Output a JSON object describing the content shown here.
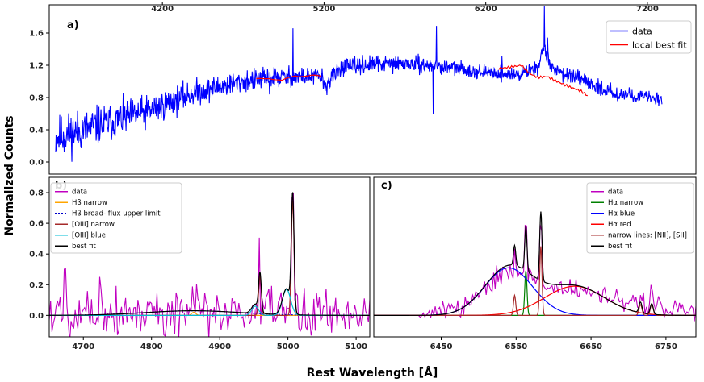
{
  "figure": {
    "ylabel": "Normalized Counts",
    "xlabel": "Rest Wavelength [Å]"
  },
  "chart_data": [
    {
      "id": "a",
      "type": "line",
      "panel_label": "a)",
      "xlim": [
        3500,
        7500
      ],
      "ylim": [
        -0.15,
        1.95
      ],
      "xticks": [
        4200,
        5200,
        6200,
        7200
      ],
      "xtick_position": "top",
      "yticks": [
        0.0,
        0.4,
        0.8,
        1.2,
        1.6
      ],
      "ytick_labels": [
        "0.0",
        "0.4",
        "0.8",
        "1.2",
        "1.6"
      ],
      "legend": {
        "placement": "top-right",
        "entries": [
          {
            "name": "data",
            "color": "#0000ff"
          },
          {
            "name": "local best fit",
            "color": "#ff0000"
          }
        ]
      },
      "series": [
        {
          "name": "data",
          "color": "#0000ff",
          "kind": "noisy",
          "x_range": [
            3540,
            7290
          ],
          "step": 2.5,
          "seed": 11,
          "anchors": [
            [
              3540,
              0.3
            ],
            [
              3800,
              0.45
            ],
            [
              4100,
              0.62
            ],
            [
              4400,
              0.86
            ],
            [
              4700,
              1.0
            ],
            [
              4900,
              1.05
            ],
            [
              5190,
              1.06
            ],
            [
              5200,
              0.92
            ],
            [
              5300,
              1.17
            ],
            [
              5500,
              1.21
            ],
            [
              5700,
              1.22
            ],
            [
              6000,
              1.17
            ],
            [
              6200,
              1.11
            ],
            [
              6400,
              1.08
            ],
            [
              6520,
              1.18
            ],
            [
              6560,
              1.42
            ],
            [
              6600,
              1.18
            ],
            [
              6800,
              1.0
            ],
            [
              7000,
              0.85
            ],
            [
              7290,
              0.78
            ]
          ],
          "noise_anchors": [
            [
              3540,
              0.17
            ],
            [
              4400,
              0.1
            ],
            [
              5200,
              0.07
            ],
            [
              6200,
              0.05
            ],
            [
              6600,
              0.06
            ],
            [
              7290,
              0.05
            ]
          ],
          "spikes": [
            [
              4862,
              -0.12
            ],
            [
              5007,
              0.6
            ],
            [
              5875,
              -0.55
            ],
            [
              5895,
              0.55
            ],
            [
              6300,
              0.16
            ],
            [
              6563,
              0.5
            ],
            [
              6583,
              0.3
            ],
            [
              6731,
              0.12
            ]
          ]
        },
        {
          "name": "local best fit",
          "color": "#ff0000",
          "kind": "smooth",
          "x_range": [
            4780,
            5180
          ],
          "step": 20,
          "points": [
            [
              4780,
              1.02
            ],
            [
              4860,
              1.05
            ],
            [
              4940,
              1.0
            ],
            [
              5020,
              1.08
            ],
            [
              5100,
              1.06
            ],
            [
              5180,
              1.07
            ]
          ]
        },
        {
          "name": "local best fit",
          "color": "#ff0000",
          "kind": "smooth",
          "x_range": [
            6280,
            6830
          ],
          "step": 10,
          "points": [
            [
              6280,
              1.16
            ],
            [
              6360,
              1.18
            ],
            [
              6420,
              1.2
            ],
            [
              6470,
              1.1
            ],
            [
              6520,
              1.05
            ],
            [
              6580,
              1.06
            ],
            [
              6640,
              1.0
            ],
            [
              6720,
              0.93
            ],
            [
              6790,
              0.88
            ],
            [
              6830,
              0.82
            ]
          ]
        }
      ]
    },
    {
      "id": "b",
      "type": "line",
      "panel_label": "b)",
      "xlim": [
        4650,
        5120
      ],
      "ylim": [
        -0.14,
        0.9
      ],
      "xticks": [
        4700,
        4800,
        4900,
        5000,
        5100
      ],
      "yticks": [
        0.0,
        0.2,
        0.4,
        0.6,
        0.8
      ],
      "ytick_labels": [
        "0.0",
        "0.2",
        "0.4",
        "0.6",
        "0.8"
      ],
      "legend": {
        "placement": "top-left",
        "entries": [
          {
            "name": "data",
            "color": "#c000c0",
            "dash": ""
          },
          {
            "name": "Hβ narrow",
            "color": "#ffa500",
            "dash": ""
          },
          {
            "name": "Hβ broad- flux upper limit",
            "color": "#0000cc",
            "dash": "2,2"
          },
          {
            "name": "[OIII] narrow",
            "color": "#a52a2a",
            "dash": ""
          },
          {
            "name": "[OIII] blue",
            "color": "#00bcd4",
            "dash": ""
          },
          {
            "name": "best fit",
            "color": "#000000",
            "dash": ""
          }
        ]
      },
      "series": [
        {
          "name": "data",
          "color": "#c000c0",
          "kind": "noisy",
          "x_range": [
            4650,
            5120
          ],
          "step": 2,
          "seed": 5,
          "anchors": [
            [
              4650,
              0.02
            ],
            [
              5120,
              0.02
            ]
          ],
          "noise_anchors": [
            [
              4650,
              0.11
            ],
            [
              5120,
              0.1
            ]
          ],
          "spikes": [
            [
              4673,
              0.26
            ],
            [
              4725,
              0.28
            ],
            [
              4860,
              0.06
            ],
            [
              4958,
              0.3
            ],
            [
              4990,
              0.14
            ],
            [
              5007,
              0.74
            ]
          ]
        },
        {
          "name": "Hβ narrow",
          "color": "#ffa500",
          "kind": "gauss",
          "components": [
            {
              "amp": 0.02,
              "mu": 4862,
              "sigma": 3
            }
          ],
          "baseline": 0.0
        },
        {
          "name": "Hβ broad- flux upper limit",
          "color": "#0000cc",
          "kind": "gauss",
          "dash": "2,2",
          "components": [
            {
              "amp": 0.03,
              "mu": 4861,
              "sigma": 70
            }
          ],
          "baseline": 0.0
        },
        {
          "name": "[OIII] narrow",
          "color": "#a52a2a",
          "kind": "gauss",
          "components": [
            {
              "amp": 0.25,
              "mu": 4959,
              "sigma": 2
            },
            {
              "amp": 0.75,
              "mu": 5007,
              "sigma": 2
            }
          ],
          "baseline": 0.0
        },
        {
          "name": "[OIII] blue",
          "color": "#00bcd4",
          "kind": "gauss",
          "components": [
            {
              "amp": 0.06,
              "mu": 4952,
              "sigma": 5
            },
            {
              "amp": 0.17,
              "mu": 4998,
              "sigma": 6
            }
          ],
          "baseline": 0.0
        },
        {
          "name": "best fit",
          "color": "#000000",
          "kind": "gauss",
          "components": [
            {
              "amp": 0.03,
              "mu": 4861,
              "sigma": 70
            },
            {
              "amp": 0.25,
              "mu": 4959,
              "sigma": 2
            },
            {
              "amp": 0.75,
              "mu": 5007,
              "sigma": 2
            },
            {
              "amp": 0.06,
              "mu": 4952,
              "sigma": 5
            },
            {
              "amp": 0.17,
              "mu": 4998,
              "sigma": 6
            }
          ],
          "baseline": 0.0
        }
      ]
    },
    {
      "id": "c",
      "type": "line",
      "panel_label": "c)",
      "xlim": [
        6360,
        6790
      ],
      "ylim": [
        -0.14,
        0.9
      ],
      "xticks": [
        6450,
        6550,
        6650,
        6750
      ],
      "yticks": [],
      "legend": {
        "placement": "top-right",
        "entries": [
          {
            "name": "data",
            "color": "#c000c0"
          },
          {
            "name": "Hα narrow",
            "color": "#008000"
          },
          {
            "name": "Hα blue",
            "color": "#0000ff"
          },
          {
            "name": "Hα red",
            "color": "#ff0000"
          },
          {
            "name": "narrow lines: [NII], [SII]",
            "color": "#a52a2a"
          },
          {
            "name": "best fit",
            "color": "#000000"
          }
        ]
      },
      "series": [
        {
          "name": "data",
          "color": "#c000c0",
          "kind": "noisy",
          "x_range": [
            6420,
            6790
          ],
          "step": 2,
          "seed": 9,
          "anchors": [
            [
              6420,
              0.0
            ],
            [
              6440,
              0.02
            ],
            [
              6480,
              0.06
            ],
            [
              6510,
              0.2
            ],
            [
              6540,
              0.31
            ],
            [
              6560,
              0.28
            ],
            [
              6590,
              0.18
            ],
            [
              6620,
              0.18
            ],
            [
              6650,
              0.16
            ],
            [
              6680,
              0.1
            ],
            [
              6710,
              0.07
            ],
            [
              6730,
              0.07
            ],
            [
              6760,
              0.04
            ],
            [
              6790,
              0.03
            ]
          ],
          "noise_anchors": [
            [
              6420,
              0.01
            ],
            [
              6470,
              0.05
            ],
            [
              6600,
              0.04
            ],
            [
              6790,
              0.05
            ]
          ],
          "spikes": [
            [
              6548,
              0.12
            ],
            [
              6563,
              0.3
            ],
            [
              6583,
              0.38
            ],
            [
              6716,
              0.08
            ],
            [
              6731,
              0.08
            ]
          ]
        },
        {
          "name": "Hα narrow",
          "color": "#008000",
          "kind": "gauss",
          "components": [
            {
              "amp": 0.29,
              "mu": 6563,
              "sigma": 1.5
            }
          ],
          "baseline": 0.0
        },
        {
          "name": "Hα blue",
          "color": "#0000ff",
          "kind": "gauss",
          "components": [
            {
              "amp": 0.31,
              "mu": 6540,
              "sigma": 32
            }
          ],
          "baseline": 0.0
        },
        {
          "name": "Hα red",
          "color": "#ff0000",
          "kind": "gauss",
          "components": [
            {
              "amp": 0.19,
              "mu": 6628,
              "sigma": 40
            }
          ],
          "baseline": 0.0
        },
        {
          "name": "narrow lines: [NII], [SII]",
          "color": "#a52a2a",
          "kind": "gauss",
          "components": [
            {
              "amp": 0.13,
              "mu": 6548,
              "sigma": 1.5
            },
            {
              "amp": 0.45,
              "mu": 6583,
              "sigma": 1.5
            },
            {
              "amp": 0.07,
              "mu": 6716,
              "sigma": 2
            },
            {
              "amp": 0.07,
              "mu": 6731,
              "sigma": 2
            }
          ],
          "baseline": 0.0
        },
        {
          "name": "best fit",
          "color": "#000000",
          "kind": "gauss",
          "components": [
            {
              "amp": 0.29,
              "mu": 6563,
              "sigma": 1.5
            },
            {
              "amp": 0.31,
              "mu": 6540,
              "sigma": 32
            },
            {
              "amp": 0.19,
              "mu": 6628,
              "sigma": 40
            },
            {
              "amp": 0.13,
              "mu": 6548,
              "sigma": 1.5
            },
            {
              "amp": 0.45,
              "mu": 6583,
              "sigma": 1.5
            },
            {
              "amp": 0.07,
              "mu": 6716,
              "sigma": 2
            },
            {
              "amp": 0.07,
              "mu": 6731,
              "sigma": 2
            }
          ],
          "baseline": 0.0
        }
      ]
    }
  ]
}
